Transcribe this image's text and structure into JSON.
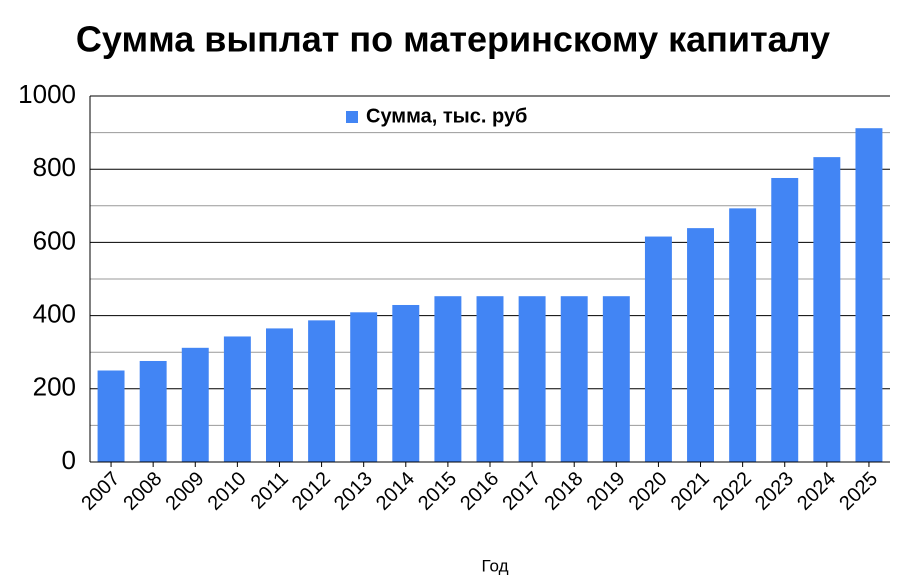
{
  "chart_data": {
    "type": "bar",
    "title": "Сумма выплат по материнскому капиталу",
    "x_label": "Год",
    "categories": [
      "2007",
      "2008",
      "2009",
      "2010",
      "2011",
      "2012",
      "2013",
      "2014",
      "2015",
      "2016",
      "2017",
      "2018",
      "2019",
      "2020",
      "2021",
      "2022",
      "2023",
      "2024",
      "2025"
    ],
    "series": [
      {
        "name": "Сумма, тыс. руб",
        "color": "#4285f4",
        "values": [
          250,
          276,
          312,
          343,
          365,
          387,
          409,
          429,
          453,
          453,
          453,
          453,
          453,
          616,
          639,
          693,
          776,
          833,
          912
        ]
      }
    ],
    "ylim": [
      0,
      1000
    ],
    "yticks": [
      0,
      200,
      400,
      600,
      800,
      1000
    ],
    "minor_yticks": [
      100,
      300,
      500,
      700,
      900
    ],
    "grid": true,
    "legend": "top"
  }
}
